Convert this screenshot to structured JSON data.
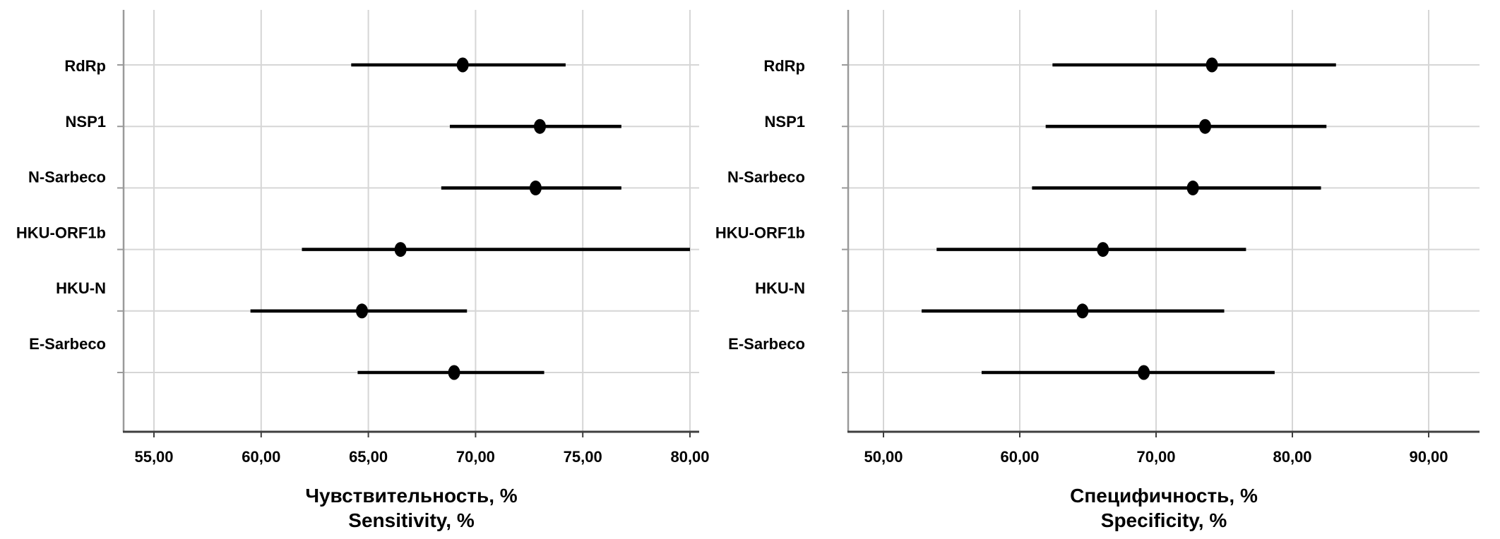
{
  "figure": {
    "description": "Two forest plots of diagnostic accuracy (point estimates with 95% CI) for six PCR gene targets",
    "background": "#ffffff"
  },
  "colors": {
    "ci_bar": "#000000",
    "marker": "#000000",
    "gridline": "#d6d6d6",
    "y_axis_line": "#9a9a9a",
    "x_axis_line": "#3f3f3f",
    "text": "#000000",
    "background": "#ffffff"
  },
  "chart_data": [
    {
      "type": "forest",
      "id": "sensitivity",
      "xlabel_line1": "Чувствительность, %",
      "xlabel_line2": "Sensitivity, %",
      "categories": [
        "RdRp",
        "NSP1",
        "N-Sarbeco",
        "HKU-ORF1b",
        "HKU-N",
        "E-Sarbeco"
      ],
      "series": [
        {
          "name": "Point estimate with 95% CI",
          "points": [
            {
              "category": "RdRp",
              "value": 69.4,
              "ci_low": 64.2,
              "ci_high": 74.2
            },
            {
              "category": "NSP1",
              "value": 73.0,
              "ci_low": 68.8,
              "ci_high": 76.8
            },
            {
              "category": "N-Sarbeco",
              "value": 72.8,
              "ci_low": 68.4,
              "ci_high": 76.8
            },
            {
              "category": "HKU-ORF1b",
              "value": 66.5,
              "ci_low": 61.9,
              "ci_high": 80.0
            },
            {
              "category": "HKU-N",
              "value": 64.7,
              "ci_low": 59.5,
              "ci_high": 69.6
            },
            {
              "category": "E-Sarbeco",
              "value": 69.0,
              "ci_low": 64.5,
              "ci_high": 73.2
            }
          ]
        }
      ],
      "x_ticks": [
        {
          "value": 55,
          "label": "55,00"
        },
        {
          "value": 60,
          "label": "60,00"
        },
        {
          "value": 65,
          "label": "65,00"
        },
        {
          "value": 70,
          "label": "70,00"
        },
        {
          "value": 75,
          "label": "75,00"
        },
        {
          "value": 80,
          "label": "80,00"
        }
      ],
      "xlim": [
        53.6,
        80.4
      ],
      "grid": true,
      "legend": "none",
      "marker_shape": "filled-ellipse"
    },
    {
      "type": "forest",
      "id": "specificity",
      "xlabel_line1": "Специфичность, %",
      "xlabel_line2": "Specificity, %",
      "categories": [
        "RdRp",
        "NSP1",
        "N-Sarbeco",
        "HKU-ORF1b",
        "HKU-N",
        "E-Sarbeco"
      ],
      "series": [
        {
          "name": "Point estimate with 95% CI",
          "points": [
            {
              "category": "RdRp",
              "value": 74.1,
              "ci_low": 62.4,
              "ci_high": 83.2
            },
            {
              "category": "NSP1",
              "value": 73.6,
              "ci_low": 61.9,
              "ci_high": 82.5
            },
            {
              "category": "N-Sarbeco",
              "value": 72.7,
              "ci_low": 60.9,
              "ci_high": 82.1
            },
            {
              "category": "HKU-ORF1b",
              "value": 66.1,
              "ci_low": 53.9,
              "ci_high": 76.6
            },
            {
              "category": "HKU-N",
              "value": 64.6,
              "ci_low": 52.8,
              "ci_high": 75.0
            },
            {
              "category": "E-Sarbeco",
              "value": 69.1,
              "ci_low": 57.2,
              "ci_high": 78.7
            }
          ]
        }
      ],
      "x_ticks": [
        {
          "value": 50,
          "label": "50,00"
        },
        {
          "value": 60,
          "label": "60,00"
        },
        {
          "value": 70,
          "label": "70,00"
        },
        {
          "value": 80,
          "label": "80,00"
        },
        {
          "value": 90,
          "label": "90,00"
        }
      ],
      "xlim": [
        47.4,
        93.7
      ],
      "grid": true,
      "legend": "none",
      "marker_shape": "filled-ellipse"
    }
  ]
}
